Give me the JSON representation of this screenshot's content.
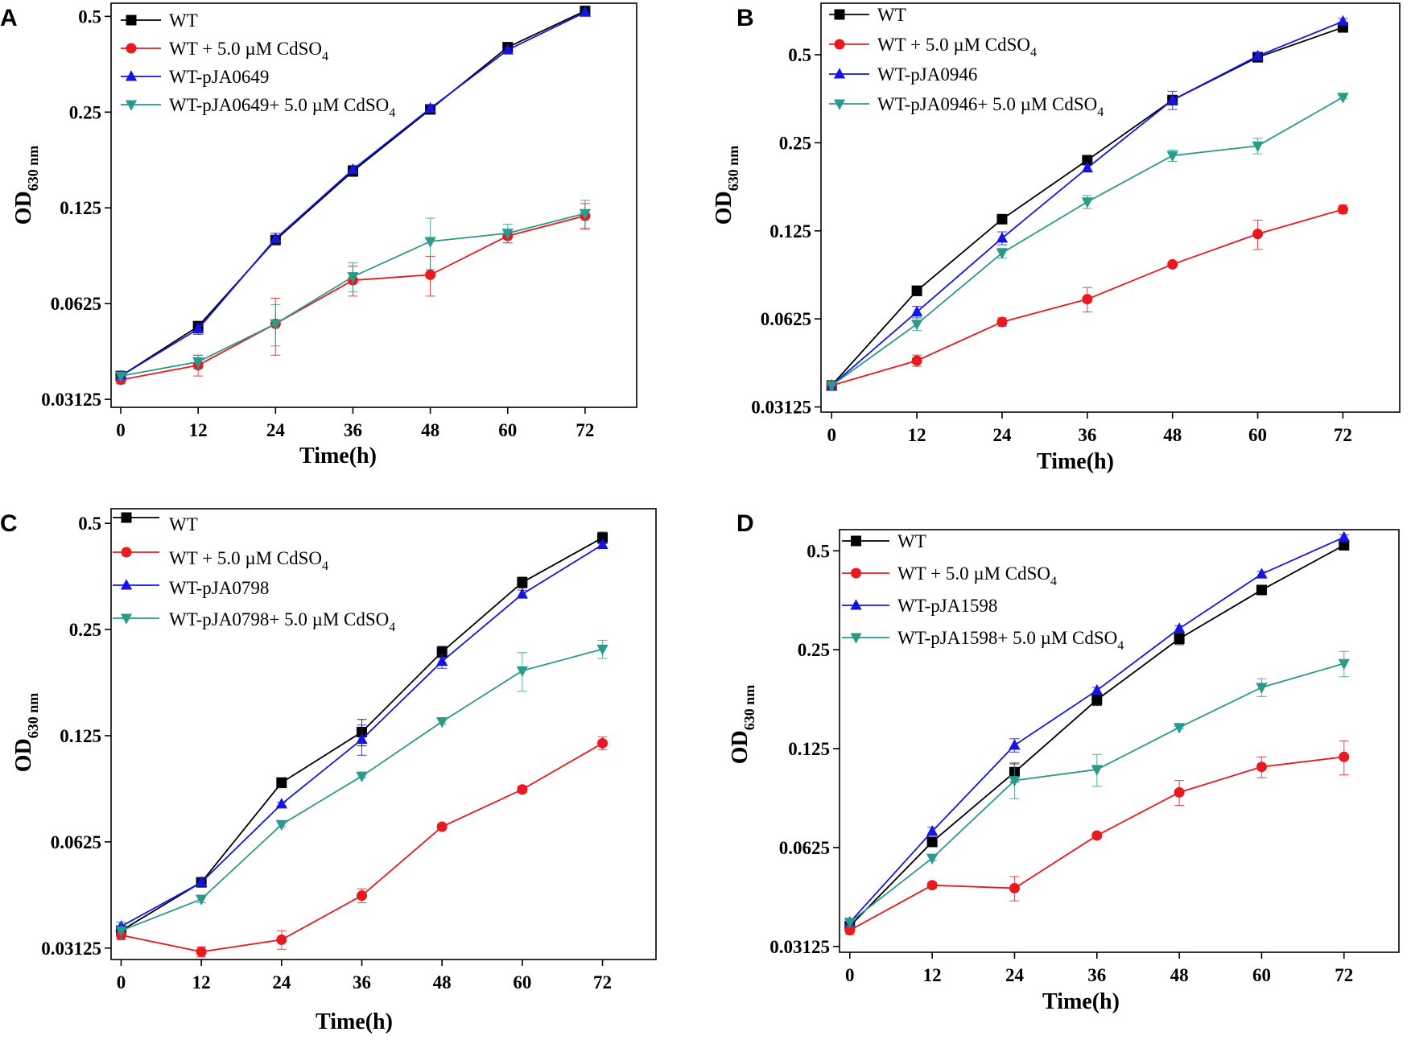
{
  "chart_data": [
    {
      "panel": "A",
      "type": "line",
      "title": "",
      "xlabel": "Time(h)",
      "ylabel": "OD",
      "ylabel_sub": "630 nm",
      "y_scale": "log2",
      "x": [
        0,
        12,
        24,
        36,
        48,
        60,
        72
      ],
      "x_ticks": [
        "0",
        "12",
        "24",
        "36",
        "48",
        "60",
        "72"
      ],
      "y_ticks": [
        "0.5",
        "0.25",
        "0.125",
        "0.0625",
        "0.03125"
      ],
      "y_tick_values": [
        0.5,
        0.25,
        0.125,
        0.0625,
        0.03125
      ],
      "xlim": [
        -1.5,
        80
      ],
      "ylim": [
        0.0295,
        0.55
      ],
      "series": [
        {
          "name": "WT",
          "suffix": "",
          "marker": "square",
          "color": "#000000",
          "values": [
            0.037,
            0.053,
            0.099,
            0.163,
            0.255,
            0.4,
            0.52
          ],
          "errors": [
            0.001,
            0.002,
            0.003,
            0.006,
            0.006,
            0.005,
            0.01
          ]
        },
        {
          "name": "WT + 5.0 µM CdSO",
          "suffix": "4",
          "marker": "circle",
          "color": "#e8191f",
          "values": [
            0.036,
            0.04,
            0.054,
            0.074,
            0.077,
            0.102,
            0.118
          ],
          "errors": [
            0.001,
            0.003,
            0.011,
            0.008,
            0.011,
            0.005,
            0.011
          ]
        },
        {
          "name": "WT-pJA0649",
          "suffix": "",
          "marker": "triangle-up",
          "color": "#1515e0",
          "values": [
            0.037,
            0.052,
            0.1,
            0.165,
            0.257,
            0.392,
            0.515
          ],
          "errors": [
            0.001,
            0.002,
            0.004,
            0.005,
            0.006,
            0.006,
            0.012
          ]
        },
        {
          "name": "WT-pJA0649+ 5.0 µM CdSO",
          "suffix": "4",
          "marker": "triangle-down",
          "color": "#2a9a8a",
          "values": [
            0.037,
            0.041,
            0.054,
            0.076,
            0.098,
            0.104,
            0.12
          ],
          "errors": [
            0.001,
            0.002,
            0.008,
            0.008,
            0.018,
            0.007,
            0.012
          ]
        }
      ]
    },
    {
      "panel": "B",
      "type": "line",
      "title": "",
      "xlabel": "Time(h)",
      "ylabel": "OD",
      "ylabel_sub": "630 nm",
      "y_scale": "log2",
      "x": [
        0,
        12,
        24,
        36,
        48,
        60,
        72
      ],
      "x_ticks": [
        "0",
        "12",
        "24",
        "36",
        "48",
        "60",
        "72"
      ],
      "y_ticks": [
        "0.5",
        "0.25",
        "0.125",
        "0.0625",
        "0.03125"
      ],
      "y_tick_values": [
        0.5,
        0.25,
        0.125,
        0.0625,
        0.03125
      ],
      "xlim": [
        -1.5,
        80
      ],
      "ylim": [
        0.03,
        0.75
      ],
      "series": [
        {
          "name": "WT",
          "suffix": "",
          "marker": "square",
          "color": "#000000",
          "values": [
            0.037,
            0.078,
            0.137,
            0.218,
            0.35,
            0.49,
            0.62
          ],
          "errors": [
            0.001,
            0.003,
            0.002,
            0.003,
            0.005,
            0.01,
            0.012
          ]
        },
        {
          "name": "WT + 5.0 µM CdSO",
          "suffix": "4",
          "marker": "circle",
          "color": "#e8191f",
          "values": [
            0.037,
            0.045,
            0.061,
            0.073,
            0.096,
            0.122,
            0.148
          ],
          "errors": [
            0.001,
            0.002,
            0.002,
            0.007,
            0.002,
            0.014,
            0.005
          ]
        },
        {
          "name": "WT-pJA0946",
          "suffix": "",
          "marker": "triangle-up",
          "color": "#1515e0",
          "values": [
            0.037,
            0.066,
            0.118,
            0.205,
            0.35,
            0.495,
            0.65
          ],
          "errors": [
            0.001,
            0.003,
            0.006,
            0.005,
            0.025,
            0.015,
            0.015
          ]
        },
        {
          "name": "WT-pJA0946+ 5.0 µM CdSO",
          "suffix": "4",
          "marker": "triangle-down",
          "color": "#2a9a8a",
          "values": [
            0.037,
            0.06,
            0.105,
            0.157,
            0.226,
            0.244,
            0.358
          ],
          "errors": [
            0.001,
            0.003,
            0.004,
            0.008,
            0.01,
            0.015,
            0.004
          ]
        }
      ]
    },
    {
      "panel": "C",
      "type": "line",
      "title": "",
      "xlabel": "Time(h)",
      "ylabel": "OD",
      "ylabel_sub": "630 nm",
      "y_scale": "log2",
      "x": [
        0,
        12,
        24,
        36,
        48,
        60,
        72
      ],
      "x_ticks": [
        "0",
        "12",
        "24",
        "36",
        "48",
        "60",
        "72"
      ],
      "y_ticks": [
        "0.5",
        "0.25",
        "0.125",
        "0.0625",
        "0.03125"
      ],
      "y_tick_values": [
        0.5,
        0.25,
        0.125,
        0.0625,
        0.03125
      ],
      "xlim": [
        -1.5,
        80
      ],
      "ylim": [
        0.029,
        0.55
      ],
      "series": [
        {
          "name": "WT",
          "suffix": "",
          "marker": "square",
          "color": "#000000",
          "values": [
            0.035,
            0.048,
            0.092,
            0.128,
            0.216,
            0.34,
            0.455
          ],
          "errors": [
            0.001,
            0.001,
            0.003,
            0.011,
            0.008,
            0.012,
            0.017
          ]
        },
        {
          "name": "WT + 5.0 µM CdSO",
          "suffix": "4",
          "marker": "circle",
          "color": "#e8191f",
          "values": [
            0.034,
            0.0305,
            0.033,
            0.044,
            0.069,
            0.088,
            0.119
          ],
          "errors": [
            0.001,
            0.001,
            0.002,
            0.002,
            0.001,
            0.002,
            0.005
          ]
        },
        {
          "name": "WT-pJA0798",
          "suffix": "",
          "marker": "triangle-up",
          "color": "#1515e0",
          "values": [
            0.036,
            0.048,
            0.08,
            0.122,
            0.203,
            0.315,
            0.435
          ],
          "errors": [
            0.001,
            0.001,
            0.001,
            0.012,
            0.009,
            0.008,
            0.009
          ]
        },
        {
          "name": "WT-pJA0798+ 5.0 µM CdSO",
          "suffix": "4",
          "marker": "triangle-down",
          "color": "#2a9a8a",
          "values": [
            0.035,
            0.043,
            0.07,
            0.096,
            0.137,
            0.191,
            0.22
          ],
          "errors": [
            0.002,
            0.001,
            0.001,
            0.001,
            0.002,
            0.024,
            0.013
          ]
        }
      ]
    },
    {
      "panel": "D",
      "type": "line",
      "title": "",
      "xlabel": "Time(h)",
      "ylabel": "OD",
      "ylabel_sub": "630 nm",
      "y_scale": "log2",
      "x": [
        0,
        12,
        24,
        36,
        48,
        60,
        72
      ],
      "x_ticks": [
        "0",
        "12",
        "24",
        "36",
        "48",
        "60",
        "72"
      ],
      "y_ticks": [
        "0.5",
        "0.25",
        "0.125",
        "0.0625",
        "0.03125"
      ],
      "y_tick_values": [
        0.5,
        0.25,
        0.125,
        0.0625,
        0.03125
      ],
      "xlim": [
        -1.5,
        80
      ],
      "ylim": [
        0.03,
        0.58
      ],
      "series": [
        {
          "name": "WT",
          "suffix": "",
          "marker": "square",
          "color": "#000000",
          "values": [
            0.036,
            0.065,
            0.106,
            0.176,
            0.27,
            0.38,
            0.52
          ],
          "errors": [
            0.001,
            0.002,
            0.007,
            0.007,
            0.011,
            0.008,
            0.01
          ]
        },
        {
          "name": "WT + 5.0 µM CdSO",
          "suffix": "4",
          "marker": "circle",
          "color": "#e8191f",
          "values": [
            0.035,
            0.048,
            0.047,
            0.068,
            0.092,
            0.11,
            0.118
          ],
          "errors": [
            0.001,
            0.001,
            0.004,
            0.001,
            0.008,
            0.008,
            0.014
          ]
        },
        {
          "name": "WT-pJA1598",
          "suffix": "",
          "marker": "triangle-up",
          "color": "#1515e0",
          "values": [
            0.037,
            0.07,
            0.128,
            0.188,
            0.29,
            0.425,
            0.55
          ],
          "errors": [
            0.001,
            0.002,
            0.006,
            0.004,
            0.006,
            0.008,
            0.01
          ]
        },
        {
          "name": "WT-pJA1598+ 5.0 µM CdSO",
          "suffix": "4",
          "marker": "triangle-down",
          "color": "#2a9a8a",
          "values": [
            0.037,
            0.058,
            0.1,
            0.108,
            0.145,
            0.192,
            0.227
          ],
          "errors": [
            0.001,
            0.001,
            0.012,
            0.012,
            0.001,
            0.012,
            0.02
          ]
        }
      ]
    }
  ]
}
